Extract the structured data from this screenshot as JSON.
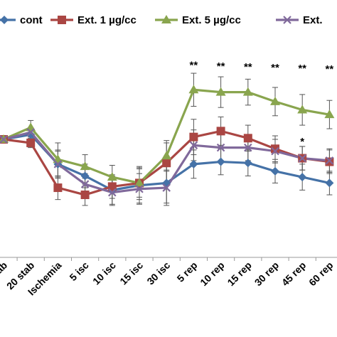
{
  "chart_data": {
    "type": "line",
    "categories": [
      "stab",
      "20 stab",
      "Ischemia",
      "5 isc",
      "10 isc",
      "15 isc",
      "30 isc",
      "5 rep",
      "10 rep",
      "15 rep",
      "30 rep",
      "45 rep",
      "60 rep"
    ],
    "ylim": [
      0,
      10
    ],
    "grid": false,
    "legend": {
      "placement": "top",
      "entries": [
        "cont",
        "Ext. 1 µg/cc",
        "Ext. 5 µg/cc",
        "Ext."
      ]
    },
    "series": [
      {
        "name": "cont",
        "color": "#4572A7",
        "marker": "diamond",
        "values": [
          5.0,
          5.2,
          3.95,
          3.45,
          2.85,
          3.05,
          3.15,
          3.95,
          4.05,
          4.0,
          3.65,
          3.4,
          3.15
        ],
        "errors": [
          0.15,
          0.2,
          0.55,
          0.5,
          0.6,
          0.75,
          0.85,
          0.6,
          0.55,
          0.55,
          0.5,
          0.55,
          0.5
        ]
      },
      {
        "name": "Ext. 1 µg/cc",
        "color": "#AA4643",
        "marker": "square",
        "values": [
          5.0,
          4.85,
          2.95,
          2.65,
          3.0,
          3.15,
          4.0,
          5.1,
          5.35,
          5.05,
          4.6,
          4.2,
          4.05
        ],
        "errors": [
          0.15,
          0.2,
          0.5,
          0.45,
          0.5,
          0.7,
          0.85,
          0.75,
          0.6,
          0.55,
          0.55,
          0.5,
          0.5
        ]
      },
      {
        "name": "Ext. 5 µg/cc",
        "color": "#89A54E",
        "marker": "triangle",
        "values": [
          5.0,
          5.5,
          4.15,
          3.85,
          3.4,
          3.15,
          4.3,
          7.1,
          7.0,
          7.0,
          6.6,
          6.25,
          6.05
        ],
        "errors": [
          0.15,
          0.3,
          0.7,
          0.5,
          0.5,
          0.6,
          0.65,
          0.7,
          0.65,
          0.55,
          0.6,
          0.65,
          0.6
        ]
      },
      {
        "name": "Ext.",
        "color": "#80699B",
        "marker": "x",
        "values": [
          5.0,
          5.3,
          3.95,
          3.1,
          2.75,
          2.9,
          2.95,
          4.75,
          4.65,
          4.65,
          4.5,
          4.2,
          4.1
        ],
        "errors": [
          0.15,
          0.2,
          0.6,
          0.45,
          0.55,
          0.65,
          0.75,
          0.65,
          0.55,
          0.55,
          0.5,
          0.5,
          0.5
        ]
      }
    ],
    "annotations": [
      {
        "category": "5 rep",
        "text": "**"
      },
      {
        "category": "10 rep",
        "text": "**"
      },
      {
        "category": "15 rep",
        "text": "**"
      },
      {
        "category": "30 rep",
        "text": "**"
      },
      {
        "category": "45 rep",
        "text": "**"
      },
      {
        "category": "60 rep",
        "text": "**"
      },
      {
        "category": "45 rep",
        "text": "*",
        "series": "Ext. 1 µg/cc"
      }
    ]
  }
}
